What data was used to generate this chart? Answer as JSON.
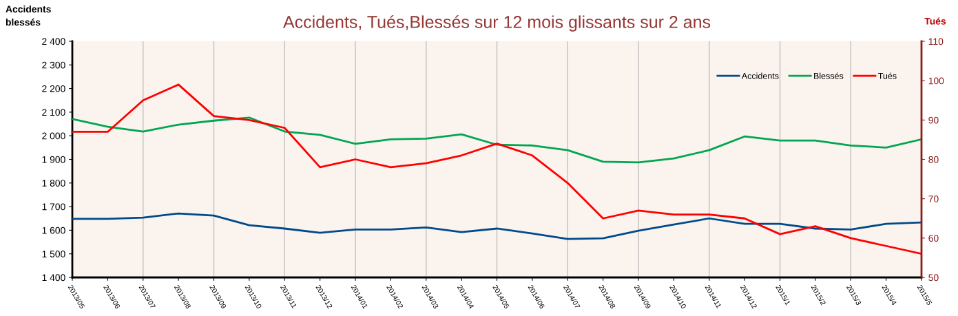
{
  "chart_data": {
    "type": "line",
    "title": "Accidents, Tués,Blessés sur 12 mois glissants sur 2 ans",
    "ylabel": "Accidents\nblessés",
    "y2label": "Tués",
    "categories": [
      "2013/05",
      "2013/06",
      "2013/07",
      "2013/08",
      "2013/09",
      "2013/10",
      "2013/11",
      "2013/12",
      "2014/01",
      "2014/02",
      "2014/03",
      "2014/04",
      "2014/05",
      "2014/06",
      "2014/07",
      "2014/08",
      "2014/09",
      "2014/10",
      "2014/11",
      "2014/12",
      "2015/1",
      "2015/2",
      "2015/3",
      "2015/4",
      "2015/5"
    ],
    "series": [
      {
        "name": "Accidents",
        "color": "#004a8c",
        "values": [
          1648,
          1648,
          1653,
          1671,
          1662,
          1621,
          1607,
          1589,
          1603,
          1603,
          1612,
          1592,
          1607,
          1586,
          1563,
          1566,
          1598,
          1624,
          1650,
          1627,
          1627,
          1607,
          1603,
          1627,
          1633
        ]
      },
      {
        "name": "Blessés",
        "color": "#00a651",
        "values": [
          2071,
          2038,
          2018,
          2047,
          2064,
          2077,
          2018,
          2004,
          1966,
          1985,
          1988,
          2006,
          1962,
          1959,
          1939,
          1890,
          1887,
          1904,
          1939,
          1997,
          1980,
          1980,
          1959,
          1950,
          1985
        ]
      },
      {
        "name": "Tués",
        "color": "#ff0000",
        "axis": "y2",
        "values": [
          87,
          87,
          95,
          99,
          91,
          90,
          88,
          78,
          80,
          78,
          79,
          81,
          84,
          81,
          74,
          65,
          67,
          66,
          66,
          65,
          61,
          63,
          60,
          58,
          56
        ]
      }
    ],
    "ylim": [
      1400,
      2400
    ],
    "yticks": [
      {
        "value": 1400,
        "label": "1 400"
      },
      {
        "value": 1500,
        "label": "1 500"
      },
      {
        "value": 1600,
        "label": "1 600"
      },
      {
        "value": 1700,
        "label": "1 700"
      },
      {
        "value": 1800,
        "label": "1 800"
      },
      {
        "value": 1900,
        "label": "1 900"
      },
      {
        "value": 2000,
        "label": "2 000"
      },
      {
        "value": 2100,
        "label": "2 100"
      },
      {
        "value": 2200,
        "label": "2 200"
      },
      {
        "value": 2300,
        "label": "2 300"
      },
      {
        "value": 2400,
        "label": "2 400"
      }
    ],
    "y2lim": [
      50,
      110
    ],
    "y2ticks": [
      50,
      60,
      70,
      80,
      90,
      100,
      110
    ],
    "grid": "x",
    "legend": "top right",
    "marker": "none",
    "line_style": "solid"
  }
}
